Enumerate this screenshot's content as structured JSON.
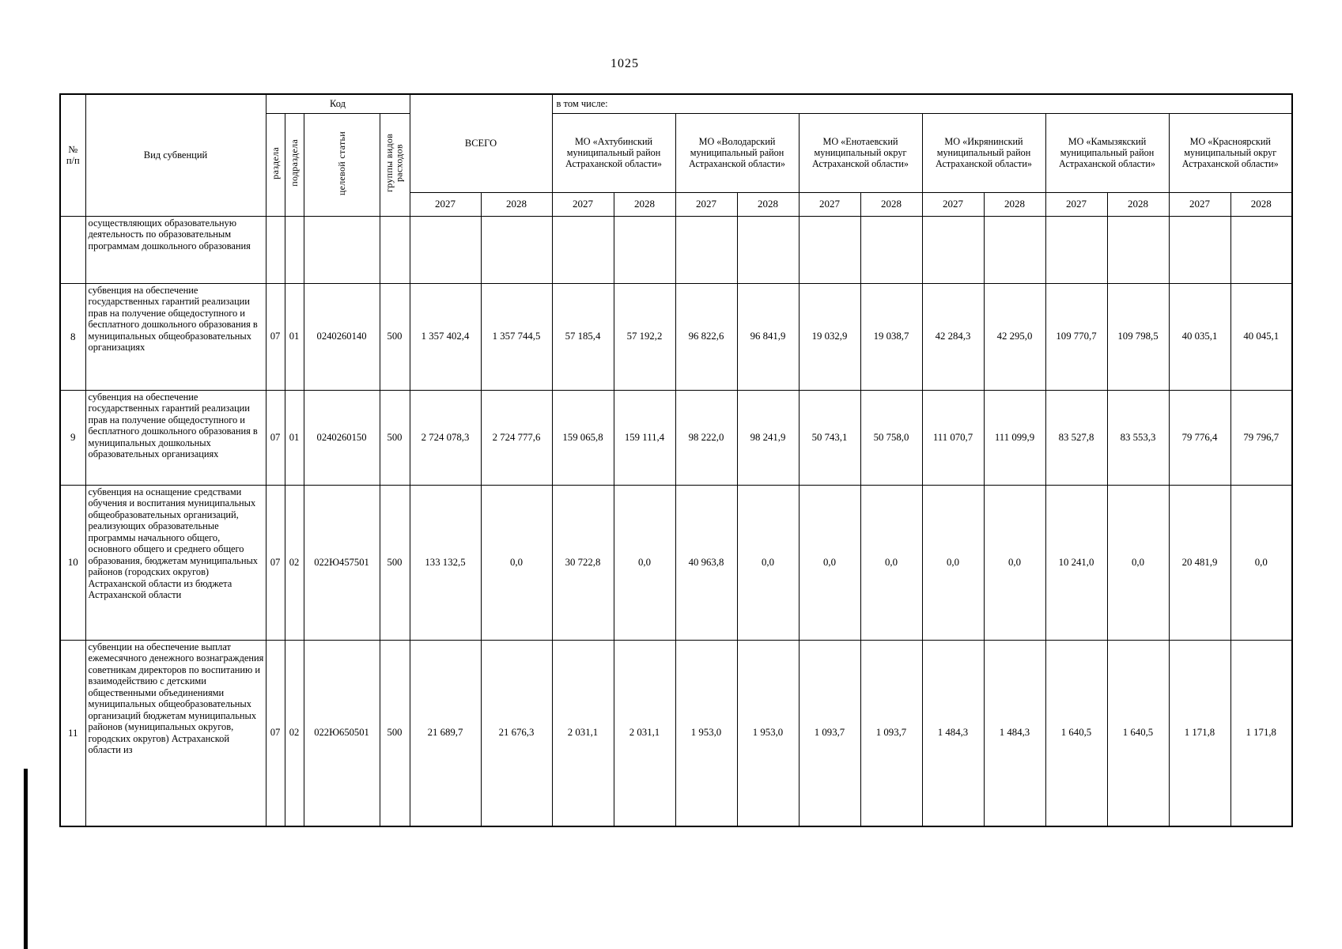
{
  "page": {
    "number": "1025"
  },
  "table": {
    "header": {
      "num": "№ п/п",
      "kind": "Вид субвенций",
      "code_group": "Код",
      "code_cols": [
        "раздела",
        "подраздела",
        "целевой статьи",
        "группы видов расходов"
      ],
      "total": "ВСЕГО",
      "including": "в том числе:",
      "municipalities": [
        "МО «Ахтубинский муниципальный район Астраханской области»",
        "МО «Володарский муниципальный район Астраханской области»",
        "МО «Енотаевский муниципальный округ Астраханской области»",
        "МО «Икрянинский муниципальный район Астраханской области»",
        "МО «Камызякский муниципальный район Астраханской области»",
        "МО «Красноярский муниципальный округ Астраханской области»"
      ],
      "years": [
        "2027",
        "2028"
      ]
    },
    "rows": [
      {
        "num": "",
        "name": "осуществляющих образовательную деятельность по образовательным программам дошкольного образования",
        "razdel": "",
        "podrazdel": "",
        "target": "",
        "group": "",
        "values": [
          "",
          "",
          "",
          "",
          "",
          "",
          "",
          "",
          "",
          "",
          "",
          "",
          "",
          ""
        ]
      },
      {
        "num": "8",
        "name": "субвенция на обеспечение государственных гарантий реализации прав на получение общедоступного и бесплатного дошкольного образования в муниципальных общеобразовательных организациях",
        "razdel": "07",
        "podrazdel": "01",
        "target": "0240260140",
        "group": "500",
        "values": [
          "1 357 402,4",
          "1 357 744,5",
          "57 185,4",
          "57 192,2",
          "96 822,6",
          "96 841,9",
          "19 032,9",
          "19 038,7",
          "42 284,3",
          "42 295,0",
          "109 770,7",
          "109 798,5",
          "40 035,1",
          "40 045,1"
        ]
      },
      {
        "num": "9",
        "name": "субвенция на обеспечение государственных гарантий реализации прав на получение общедоступного и бесплатного дошкольного образования в муниципальных дошкольных образовательных организациях",
        "razdel": "07",
        "podrazdel": "01",
        "target": "0240260150",
        "group": "500",
        "values": [
          "2 724 078,3",
          "2 724 777,6",
          "159 065,8",
          "159 111,4",
          "98 222,0",
          "98 241,9",
          "50 743,1",
          "50 758,0",
          "111 070,7",
          "111 099,9",
          "83 527,8",
          "83 553,3",
          "79 776,4",
          "79 796,7"
        ]
      },
      {
        "num": "10",
        "name": "субвенция на оснащение средствами обучения и воспитания муниципальных общеобразовательных организаций, реализующих образовательные программы начального общего, основного общего и среднего общего образования, бюджетам муниципальных районов (городских округов) Астраханской области из бюджета Астраханской области",
        "razdel": "07",
        "podrazdel": "02",
        "target": "022Ю457501",
        "group": "500",
        "values": [
          "133 132,5",
          "0,0",
          "30 722,8",
          "0,0",
          "40 963,8",
          "0,0",
          "0,0",
          "0,0",
          "0,0",
          "0,0",
          "10 241,0",
          "0,0",
          "20 481,9",
          "0,0"
        ]
      },
      {
        "num": "11",
        "name": "субвенции на обеспечение выплат ежемесячного денежного вознаграждения советникам директоров по воспитанию и взаимодействию с детскими общественными объединениями муниципальных общеобразовательных организаций бюджетам муниципальных районов (муниципальных округов, городских округов) Астраханской области из",
        "razdel": "07",
        "podrazdel": "02",
        "target": "022Ю650501",
        "group": "500",
        "values": [
          "21 689,7",
          "21 676,3",
          "2 031,1",
          "2 031,1",
          "1 953,0",
          "1 953,0",
          "1 093,7",
          "1 093,7",
          "1 484,3",
          "1 484,3",
          "1 640,5",
          "1 640,5",
          "1 171,8",
          "1 171,8"
        ]
      }
    ]
  }
}
